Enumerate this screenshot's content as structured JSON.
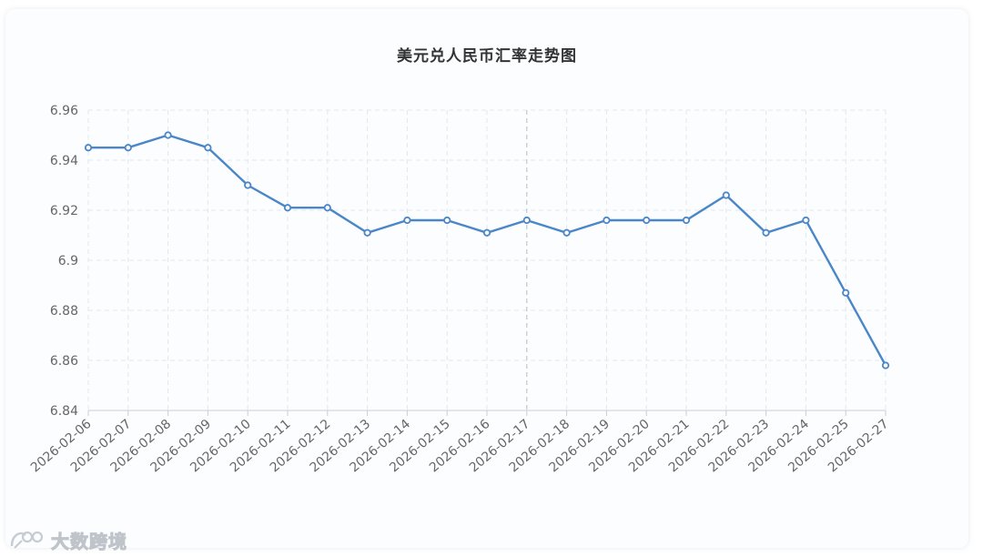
{
  "chart_data": {
    "type": "line",
    "title": "美元兑人民币汇率走势图",
    "xlabel": "",
    "ylabel": "",
    "categories": [
      "2026-02-06",
      "2026-02-07",
      "2026-02-08",
      "2026-02-09",
      "2026-02-10",
      "2026-02-11",
      "2026-02-12",
      "2026-02-13",
      "2026-02-14",
      "2026-02-15",
      "2026-02-16",
      "2026-02-17",
      "2026-02-18",
      "2026-02-19",
      "2026-02-20",
      "2026-02-21",
      "2026-02-22",
      "2026-02-23",
      "2026-02-24",
      "2026-02-25",
      "2026-02-27"
    ],
    "series": [
      {
        "values": [
          6.945,
          6.945,
          6.95,
          6.945,
          6.93,
          6.921,
          6.921,
          6.911,
          6.916,
          6.916,
          6.911,
          6.916,
          6.911,
          6.916,
          6.916,
          6.916,
          6.926,
          6.911,
          6.916,
          6.887,
          6.858
        ]
      }
    ],
    "ylim": [
      6.84,
      6.96
    ],
    "yticks": [
      "6.84",
      "6.86",
      "6.88",
      "6.9",
      "6.92",
      "6.94",
      "6.96"
    ],
    "grid": true,
    "highlight_category": "2026-02-17",
    "line_color": "#4a86c8",
    "grid_color": "#e3e7ee",
    "axis_label_color": "#666666"
  },
  "watermark": {
    "text": "大数跨境"
  }
}
